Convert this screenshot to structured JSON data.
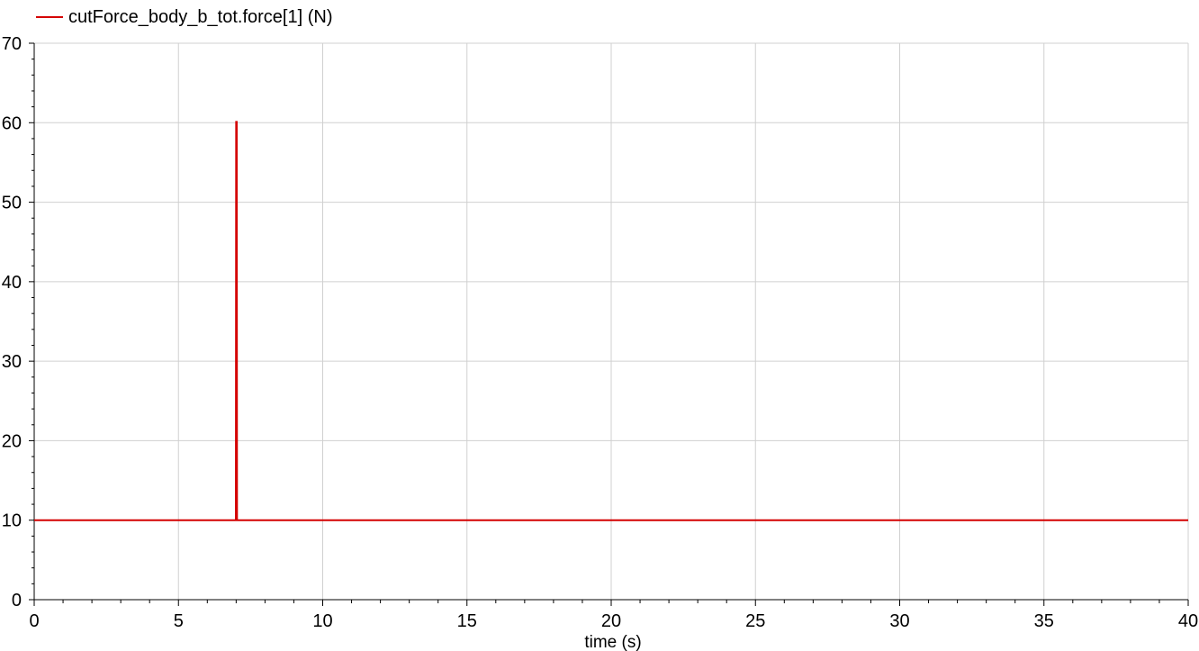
{
  "chart_data": {
    "type": "line",
    "xlabel": "time (s)",
    "ylabel": "",
    "xlim": [
      0,
      40
    ],
    "ylim": [
      0,
      70
    ],
    "x_ticks": [
      0,
      5,
      10,
      15,
      20,
      25,
      30,
      35,
      40
    ],
    "y_ticks": [
      0,
      10,
      20,
      30,
      40,
      50,
      60,
      70
    ],
    "grid": true,
    "legend_position": "top-left",
    "series": [
      {
        "name": "cutForce_body_b_tot.force[1] (N)",
        "color": "#d40000",
        "x": [
          0,
          6.99,
          7.0,
          7.02,
          7.03,
          40
        ],
        "y": [
          10,
          10,
          60.1,
          60.1,
          10,
          10
        ]
      }
    ]
  }
}
